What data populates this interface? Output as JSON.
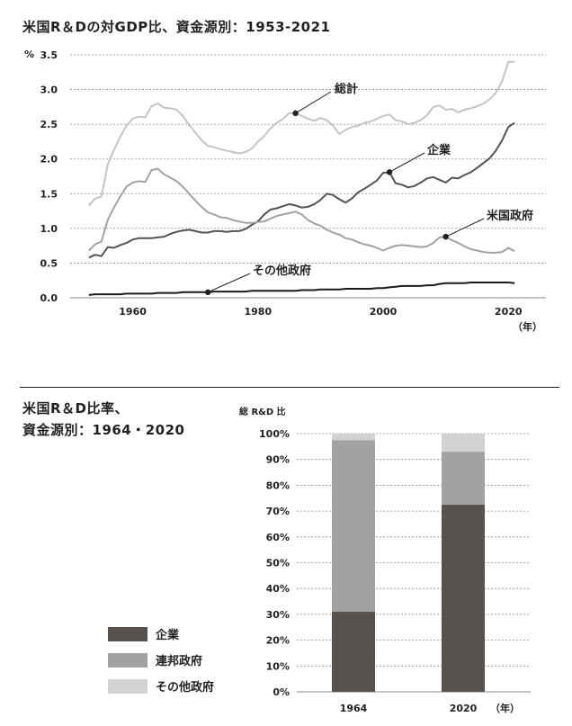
{
  "charts": {
    "line": {
      "title": "米国R＆Dの対GDP比、資金源別：1953-2021",
      "y_unit": "%",
      "x_unit": "（年）",
      "y_ticks": [
        "0.0",
        "0.5",
        "1.0",
        "1.5",
        "2.0",
        "2.5",
        "3.0",
        "3.5"
      ],
      "x_ticks": [
        "1960",
        "1980",
        "2000",
        "2020"
      ]
    },
    "bar": {
      "title_line1": "米国R＆D比率、",
      "title_line2": "資金源別：1964・2020",
      "y_label": "総 R&D 比",
      "y_ticks": [
        "0%",
        "10%",
        "20%",
        "30%",
        "40%",
        "50%",
        "60%",
        "70%",
        "80%",
        "90%",
        "100%"
      ],
      "x_unit": "（年）"
    }
  },
  "colors": {
    "total": "#c4c4c4",
    "business": "#58524f",
    "federal": "#a2a2a2",
    "other": "#1e1a1b",
    "bar_business": "#58524f",
    "bar_federal": "#a2a2a2",
    "bar_other": "#d2d2d2"
  },
  "chart_data": [
    {
      "type": "line",
      "title": "米国R＆Dの対GDP比、資金源別：1953-2021",
      "xlabel": "（年）",
      "ylabel": "%",
      "xlim": [
        1953,
        2021
      ],
      "ylim": [
        0,
        3.5
      ],
      "grid": true,
      "legend": "annotations",
      "x": [
        1953,
        1954,
        1955,
        1956,
        1957,
        1958,
        1959,
        1960,
        1961,
        1962,
        1963,
        1964,
        1965,
        1966,
        1967,
        1968,
        1969,
        1970,
        1971,
        1972,
        1973,
        1974,
        1975,
        1976,
        1977,
        1978,
        1979,
        1980,
        1981,
        1982,
        1983,
        1984,
        1985,
        1986,
        1987,
        1988,
        1989,
        1990,
        1991,
        1992,
        1993,
        1994,
        1995,
        1996,
        1997,
        1998,
        1999,
        2000,
        2001,
        2002,
        2003,
        2004,
        2005,
        2006,
        2007,
        2008,
        2009,
        2010,
        2011,
        2012,
        2013,
        2014,
        2015,
        2016,
        2017,
        2018,
        2019,
        2020,
        2021
      ],
      "series": [
        {
          "name": "総計",
          "values": [
            1.33,
            1.43,
            1.46,
            1.92,
            2.13,
            2.32,
            2.48,
            2.58,
            2.61,
            2.6,
            2.76,
            2.8,
            2.74,
            2.73,
            2.71,
            2.62,
            2.49,
            2.38,
            2.27,
            2.19,
            2.17,
            2.14,
            2.12,
            2.1,
            2.08,
            2.1,
            2.15,
            2.25,
            2.33,
            2.44,
            2.52,
            2.58,
            2.66,
            2.66,
            2.62,
            2.58,
            2.55,
            2.59,
            2.56,
            2.48,
            2.36,
            2.42,
            2.46,
            2.48,
            2.52,
            2.54,
            2.58,
            2.62,
            2.64,
            2.56,
            2.54,
            2.5,
            2.52,
            2.56,
            2.63,
            2.75,
            2.77,
            2.71,
            2.72,
            2.67,
            2.71,
            2.73,
            2.76,
            2.8,
            2.86,
            2.95,
            3.12,
            3.4,
            3.4
          ]
        },
        {
          "name": "企業",
          "values": [
            0.58,
            0.62,
            0.6,
            0.73,
            0.72,
            0.76,
            0.79,
            0.84,
            0.86,
            0.86,
            0.86,
            0.87,
            0.88,
            0.92,
            0.95,
            0.97,
            0.98,
            0.96,
            0.94,
            0.94,
            0.96,
            0.96,
            0.95,
            0.96,
            0.96,
            0.99,
            1.05,
            1.1,
            1.2,
            1.27,
            1.29,
            1.32,
            1.35,
            1.33,
            1.3,
            1.31,
            1.35,
            1.41,
            1.5,
            1.48,
            1.42,
            1.37,
            1.43,
            1.52,
            1.57,
            1.63,
            1.69,
            1.8,
            1.81,
            1.65,
            1.63,
            1.59,
            1.61,
            1.66,
            1.72,
            1.74,
            1.7,
            1.66,
            1.73,
            1.72,
            1.77,
            1.81,
            1.87,
            1.94,
            2.01,
            2.12,
            2.27,
            2.46,
            2.52
          ]
        },
        {
          "name": "米国政府",
          "values": [
            0.68,
            0.77,
            0.81,
            1.12,
            1.3,
            1.46,
            1.6,
            1.66,
            1.68,
            1.67,
            1.84,
            1.86,
            1.78,
            1.73,
            1.68,
            1.6,
            1.5,
            1.4,
            1.31,
            1.23,
            1.2,
            1.16,
            1.15,
            1.12,
            1.1,
            1.08,
            1.08,
            1.09,
            1.1,
            1.14,
            1.18,
            1.2,
            1.22,
            1.24,
            1.2,
            1.12,
            1.07,
            1.04,
            0.98,
            0.94,
            0.91,
            0.86,
            0.84,
            0.8,
            0.77,
            0.75,
            0.72,
            0.68,
            0.72,
            0.75,
            0.76,
            0.75,
            0.74,
            0.73,
            0.74,
            0.79,
            0.87,
            0.88,
            0.83,
            0.79,
            0.74,
            0.7,
            0.68,
            0.66,
            0.65,
            0.65,
            0.66,
            0.72,
            0.67
          ]
        },
        {
          "name": "その他政府",
          "values": [
            0.04,
            0.05,
            0.05,
            0.05,
            0.05,
            0.05,
            0.06,
            0.06,
            0.06,
            0.06,
            0.06,
            0.07,
            0.07,
            0.07,
            0.07,
            0.08,
            0.08,
            0.08,
            0.08,
            0.08,
            0.09,
            0.09,
            0.09,
            0.09,
            0.09,
            0.09,
            0.1,
            0.1,
            0.1,
            0.1,
            0.1,
            0.1,
            0.1,
            0.1,
            0.11,
            0.11,
            0.11,
            0.12,
            0.12,
            0.12,
            0.12,
            0.13,
            0.13,
            0.13,
            0.13,
            0.13,
            0.14,
            0.14,
            0.15,
            0.16,
            0.17,
            0.17,
            0.17,
            0.17,
            0.18,
            0.18,
            0.2,
            0.21,
            0.21,
            0.21,
            0.21,
            0.22,
            0.22,
            0.22,
            0.22,
            0.22,
            0.22,
            0.22,
            0.21
          ]
        }
      ],
      "annotations": [
        {
          "label": "総計",
          "series": "総計",
          "x": 1986
        },
        {
          "label": "企業",
          "series": "企業",
          "x": 2001
        },
        {
          "label": "米国政府",
          "series": "米国政府",
          "x": 2010
        },
        {
          "label": "その他政府",
          "series": "その他政府",
          "x": 1972
        }
      ]
    },
    {
      "type": "bar",
      "stacked": true,
      "title": "米国R＆D比率、資金源別：1964・2020",
      "ylabel": "総 R&D 比",
      "xlabel": "（年）",
      "ylim": [
        0,
        100
      ],
      "grid": true,
      "legend": "bottom-left",
      "categories": [
        "1964",
        "2020"
      ],
      "series": [
        {
          "name": "企業",
          "values": [
            31,
            72.5
          ]
        },
        {
          "name": "連邦政府",
          "values": [
            66.5,
            20.5
          ]
        },
        {
          "name": "その他政府",
          "values": [
            2.5,
            7
          ]
        }
      ]
    }
  ]
}
